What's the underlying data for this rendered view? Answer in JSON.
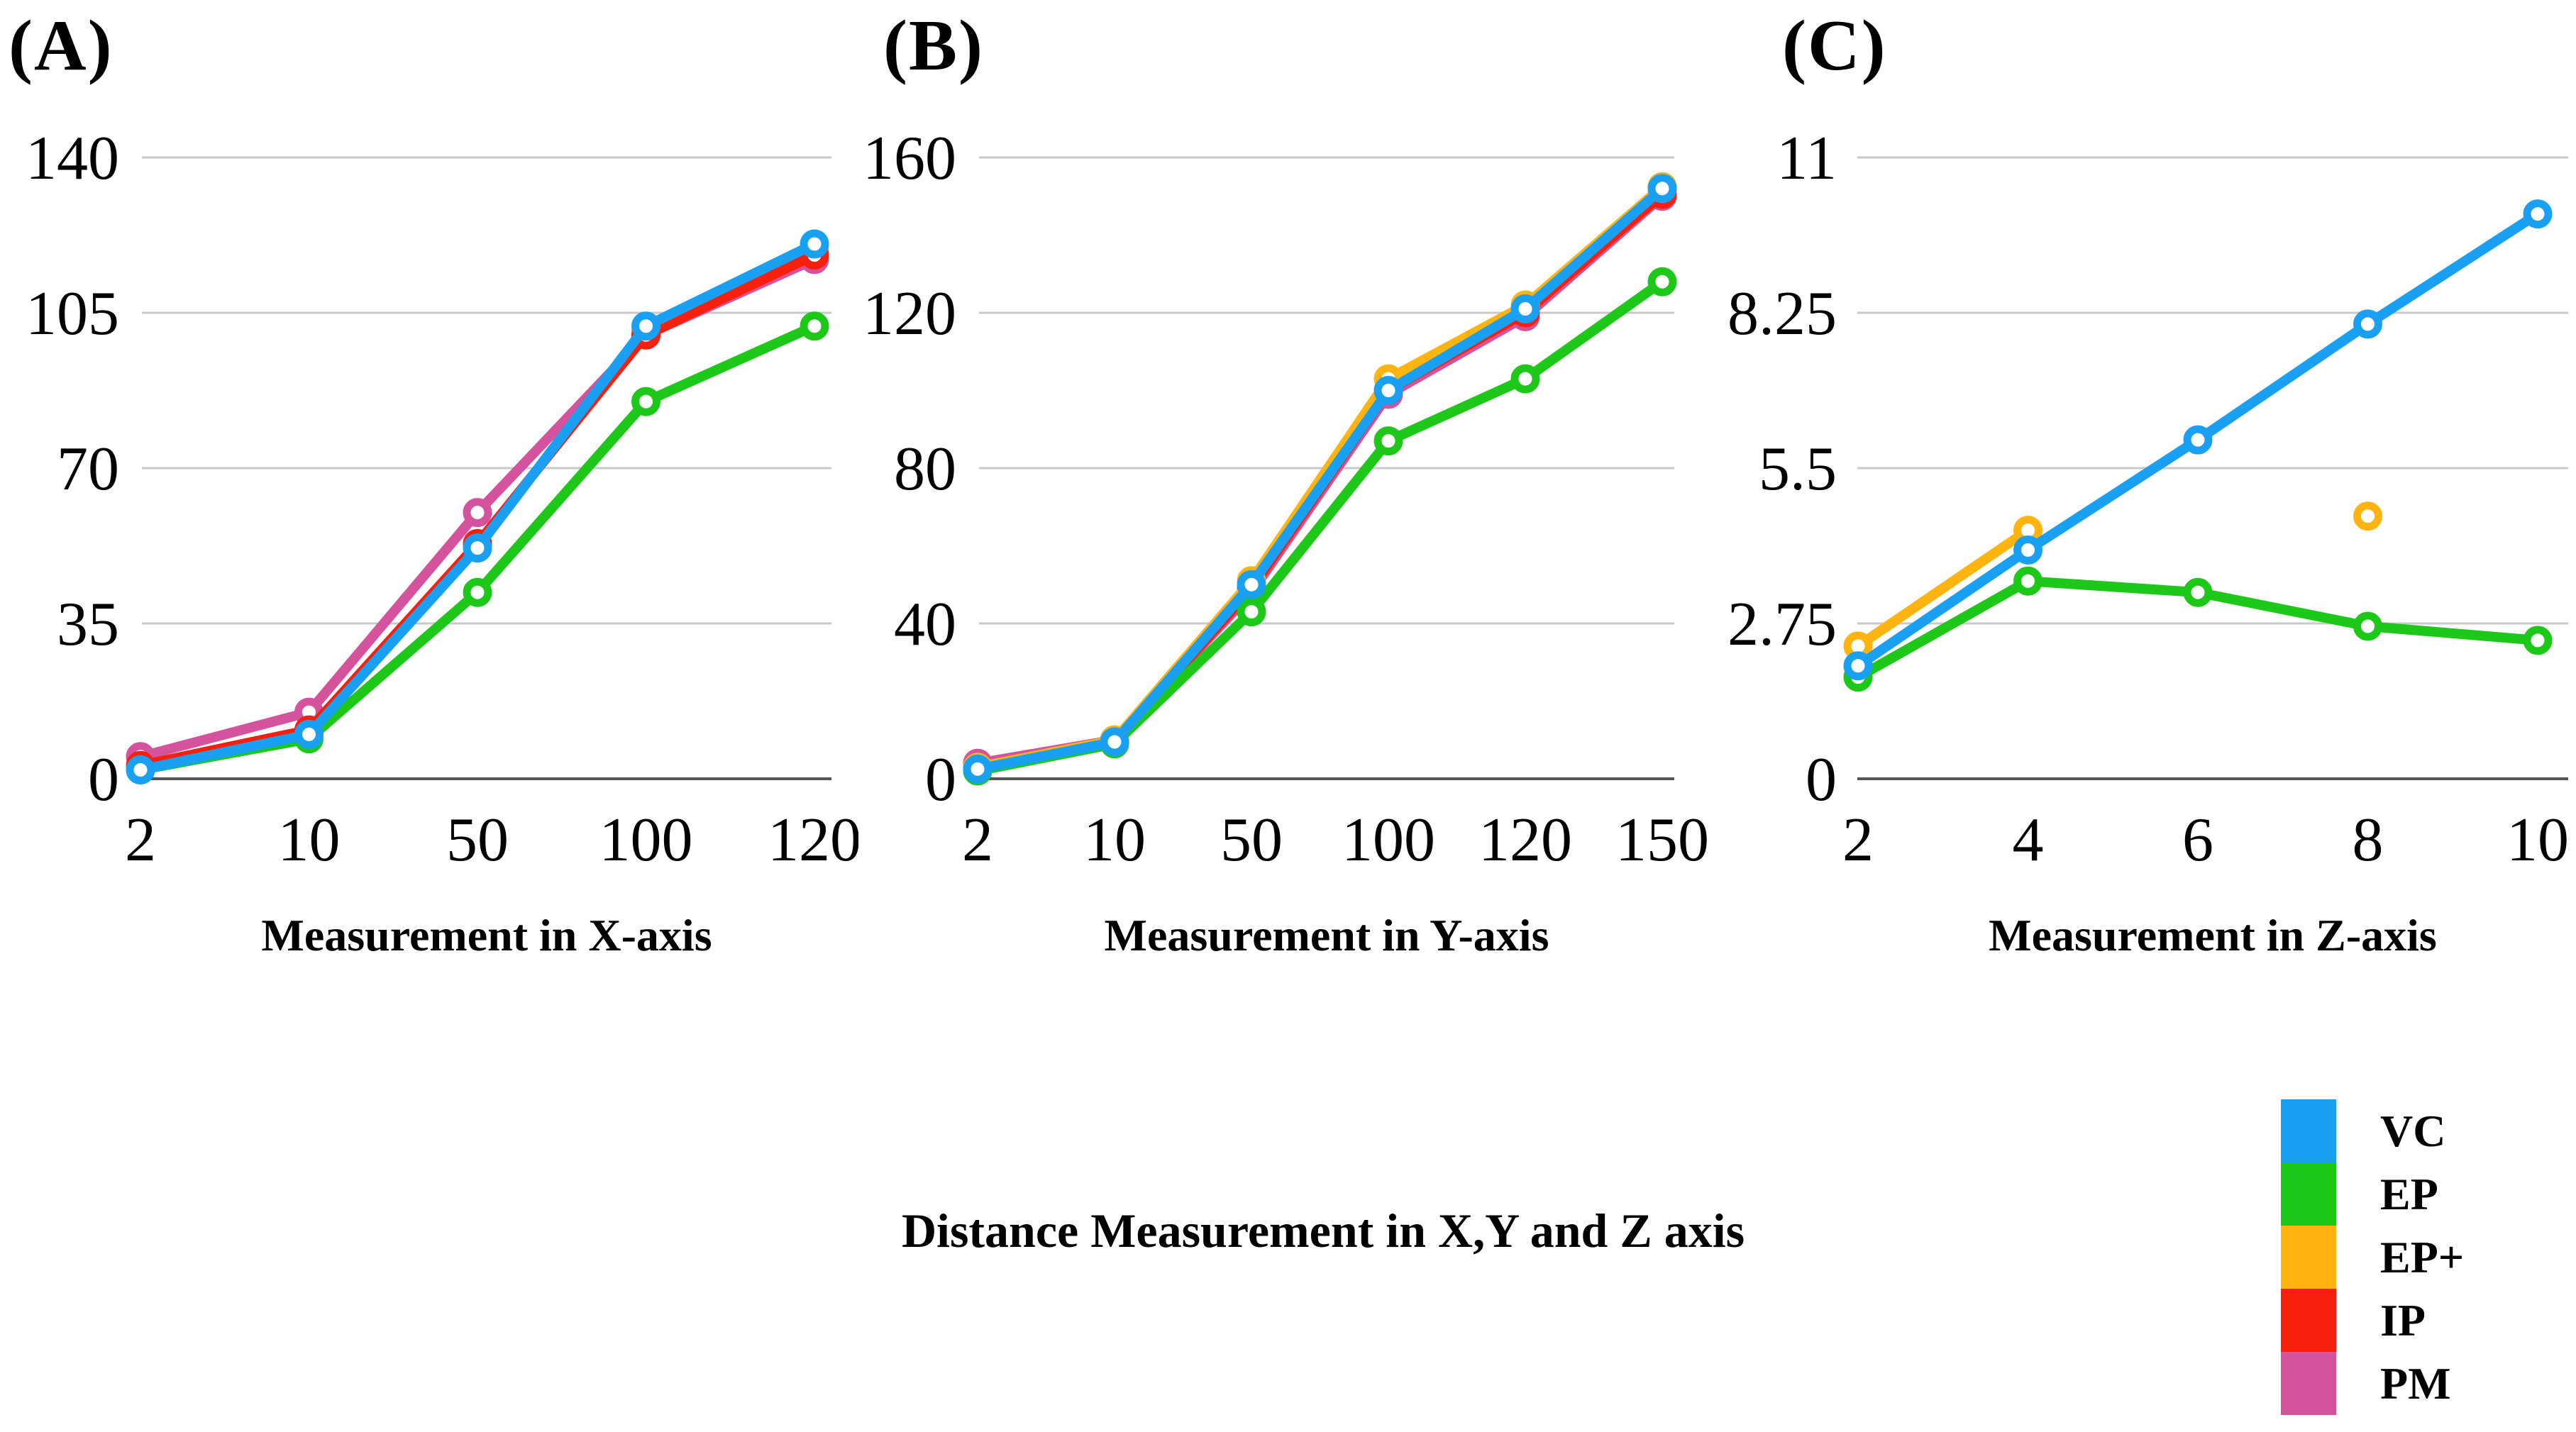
{
  "figure_title": "Distance Measurement in X,Y and Z axis",
  "colors": {
    "vc_blue": "#19A0F2",
    "ep_green": "#1DC818",
    "ep_plus_orange": "#FFB40F",
    "ip_red": "#F8200D",
    "pm_pink": "#D4539C",
    "gridline": "#C9C9C9",
    "axis_line": "#555555",
    "text": "#000000"
  },
  "legend": {
    "items": [
      {
        "label": "VC",
        "color": "#19A0F2"
      },
      {
        "label": "EP",
        "color": "#1DC818"
      },
      {
        "label": "EP+",
        "color": "#FFB40F"
      },
      {
        "label": "IP",
        "color": "#F8200D"
      },
      {
        "label": "PM",
        "color": "#D4539C"
      }
    ]
  },
  "chart_data": [
    {
      "type": "line",
      "panel_label": "(A)",
      "x_title": "Measurement in X-axis",
      "categories": [
        "2",
        "10",
        "50",
        "100",
        "120"
      ],
      "y_ticks": [
        "140",
        "105",
        "70",
        "35",
        "0"
      ],
      "ylim": [
        0,
        140
      ],
      "grid": true,
      "legend_position": "figure-bottom-right",
      "series": [
        {
          "name": "EP+",
          "color": "#FFB40F",
          "values": [
            2.5,
            10.5,
            52.5,
            101,
            119
          ]
        },
        {
          "name": "PM",
          "color": "#D4539C",
          "values": [
            5,
            15,
            60,
            100,
            117
          ]
        },
        {
          "name": "IP",
          "color": "#F8200D",
          "values": [
            3,
            11,
            53,
            100,
            118
          ]
        },
        {
          "name": "EP",
          "color": "#1DC818",
          "values": [
            2,
            9,
            42,
            85,
            102
          ]
        },
        {
          "name": "VC",
          "color": "#19A0F2",
          "values": [
            2,
            10,
            52,
            102,
            120.5
          ]
        }
      ]
    },
    {
      "type": "line",
      "panel_label": "(B)",
      "x_title": "Measurement in Y-axis",
      "categories": [
        "2",
        "10",
        "50",
        "100",
        "120",
        "150"
      ],
      "y_ticks": [
        "160",
        "120",
        "80",
        "40",
        "0"
      ],
      "ylim": [
        0,
        160
      ],
      "grid": true,
      "legend_position": "figure-bottom-right",
      "series": [
        {
          "name": "PM",
          "color": "#D4539C",
          "values": [
            4,
            10,
            48,
            99,
            119,
            150
          ]
        },
        {
          "name": "IP",
          "color": "#F8200D",
          "values": [
            3,
            9.5,
            49,
            100,
            120,
            150.5
          ]
        },
        {
          "name": "EP+",
          "color": "#FFB40F",
          "values": [
            3,
            10,
            51,
            103,
            122,
            152.5
          ]
        },
        {
          "name": "EP",
          "color": "#1DC818",
          "values": [
            2,
            9,
            43,
            87,
            103,
            128
          ]
        },
        {
          "name": "VC",
          "color": "#19A0F2",
          "values": [
            2.5,
            9.5,
            50,
            100,
            121,
            152
          ]
        }
      ]
    },
    {
      "type": "line",
      "panel_label": "(C)",
      "x_title": "Measurement in Z-axis",
      "categories": [
        "2",
        "4",
        "6",
        "8",
        "10"
      ],
      "y_ticks": [
        "11",
        "8.25",
        "5.5",
        "2.75",
        "0"
      ],
      "ylim": [
        0,
        11
      ],
      "grid": true,
      "legend_position": "figure-bottom-right",
      "series": [
        {
          "name": "EP+",
          "color": "#FFB40F",
          "values": [
            2.35,
            4.4,
            null,
            4.65,
            null
          ]
        },
        {
          "name": "EP",
          "color": "#1DC818",
          "values": [
            1.8,
            3.5,
            3.3,
            2.7,
            2.45
          ]
        },
        {
          "name": "VC",
          "color": "#19A0F2",
          "values": [
            2,
            4.05,
            6,
            8.05,
            10
          ]
        }
      ]
    }
  ]
}
